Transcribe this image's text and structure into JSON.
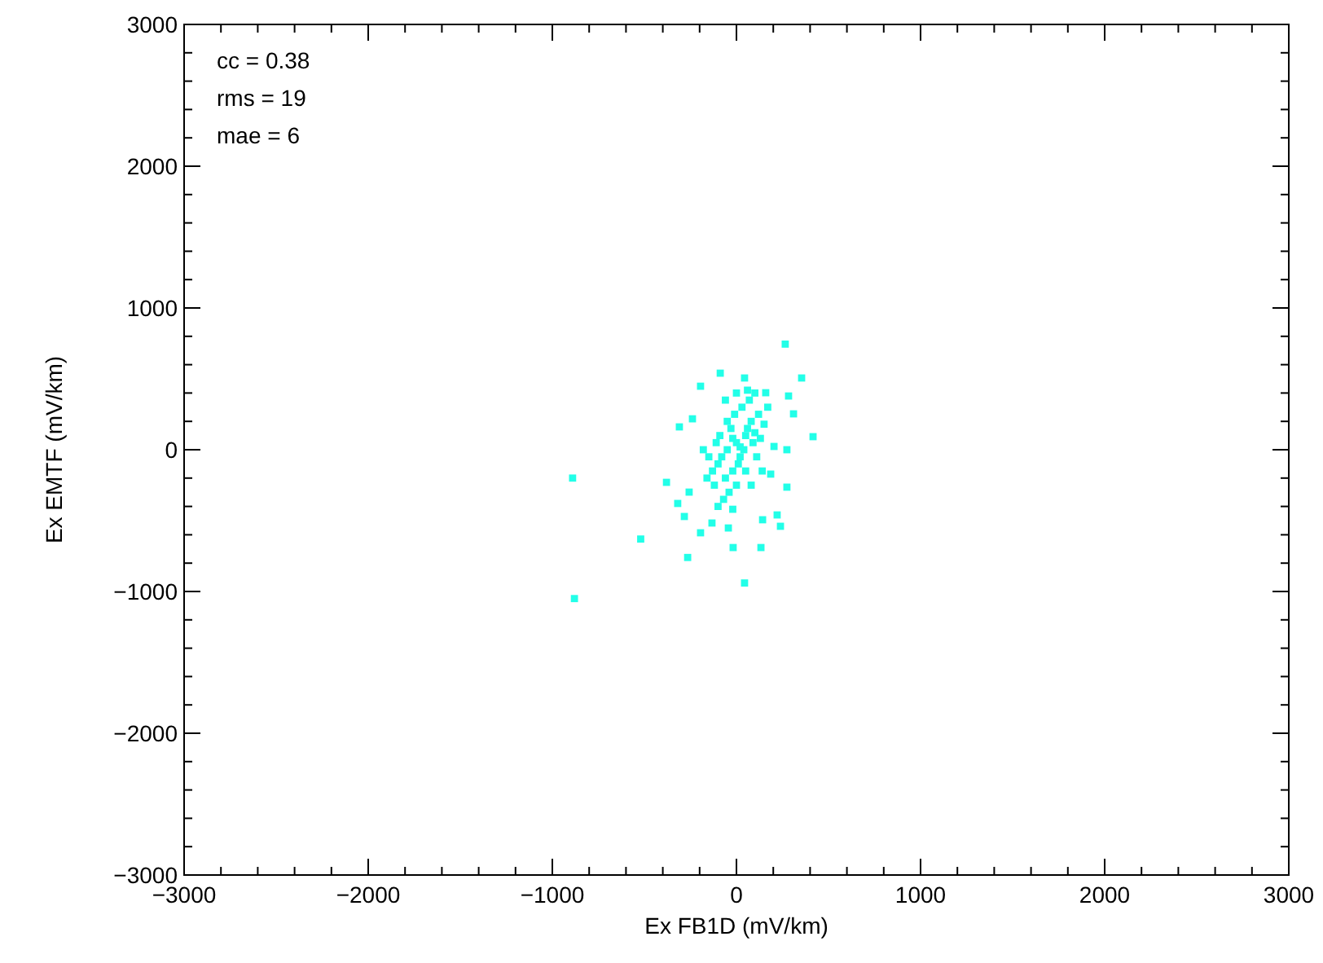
{
  "chart_data": {
    "type": "scatter",
    "xlabel": "Ex FB1D (mV/km)",
    "ylabel": "Ex EMTF (mV/km)",
    "xlim": [
      -3000,
      3000
    ],
    "ylim": [
      -3000,
      3000
    ],
    "xticks": [
      -3000,
      {
        "value": -2800,
        "label": null
      },
      {
        "value": -2600,
        "label": null
      },
      {
        "value": -2400,
        "label": null
      },
      {
        "value": -2200,
        "label": null
      },
      -2000,
      {
        "value": -1800,
        "label": null
      },
      {
        "value": -1600,
        "label": null
      },
      {
        "value": -1400,
        "label": null
      },
      {
        "value": -1200,
        "label": null
      },
      -1000,
      {
        "value": -800,
        "label": null
      },
      {
        "value": -600,
        "label": null
      },
      {
        "value": -400,
        "label": null
      },
      {
        "value": -200,
        "label": null
      },
      0,
      {
        "value": 200,
        "label": null
      },
      {
        "value": 400,
        "label": null
      },
      {
        "value": 600,
        "label": null
      },
      {
        "value": 800,
        "label": null
      },
      1000,
      {
        "value": 1200,
        "label": null
      },
      {
        "value": 1400,
        "label": null
      },
      {
        "value": 1600,
        "label": null
      },
      {
        "value": 1800,
        "label": null
      },
      2000,
      {
        "value": 2200,
        "label": null
      },
      {
        "value": 2400,
        "label": null
      },
      {
        "value": 2600,
        "label": null
      },
      {
        "value": 2800,
        "label": null
      },
      3000
    ],
    "yticks": [
      -3000,
      {
        "value": -2800,
        "label": null
      },
      {
        "value": -2600,
        "label": null
      },
      {
        "value": -2400,
        "label": null
      },
      {
        "value": -2200,
        "label": null
      },
      -2000,
      {
        "value": -1800,
        "label": null
      },
      {
        "value": -1600,
        "label": null
      },
      {
        "value": -1400,
        "label": null
      },
      {
        "value": -1200,
        "label": null
      },
      -1000,
      {
        "value": -800,
        "label": null
      },
      {
        "value": -600,
        "label": null
      },
      {
        "value": -400,
        "label": null
      },
      {
        "value": -200,
        "label": null
      },
      0,
      {
        "value": 200,
        "label": null
      },
      {
        "value": 400,
        "label": null
      },
      {
        "value": 600,
        "label": null
      },
      {
        "value": 800,
        "label": null
      },
      1000,
      {
        "value": 1200,
        "label": null
      },
      {
        "value": 1400,
        "label": null
      },
      {
        "value": 1600,
        "label": null
      },
      {
        "value": 1800,
        "label": null
      },
      2000,
      {
        "value": 2200,
        "label": null
      },
      {
        "value": 2400,
        "label": null
      },
      {
        "value": 2600,
        "label": null
      },
      {
        "value": 2800,
        "label": null
      },
      3000
    ],
    "grid": false,
    "marker": "square",
    "annotations": [
      "cc = 0.38",
      "rms = 19",
      "mae = 6"
    ],
    "series": [
      {
        "color": "#22ffe8",
        "x": [
          -890,
          -880,
          265,
          354,
          416,
          44,
          -520,
          -265,
          -310,
          -380,
          -88,
          -18,
          133,
          239,
          274,
          274,
          310,
          283,
          -195,
          -239,
          -283,
          -133,
          142,
          221,
          -257,
          -319,
          -195,
          -44,
          186,
          204,
          159,
          44,
          -50,
          0,
          50,
          -100,
          -80,
          20,
          60,
          80,
          -20,
          -60,
          -120,
          -40,
          10,
          40,
          100,
          120,
          30,
          -10,
          70,
          -30,
          -90,
          -150,
          -130,
          -70,
          0,
          90,
          130,
          150,
          -110,
          -160,
          20,
          -20,
          50,
          110,
          -50,
          0,
          60,
          -100,
          -20,
          80,
          -180,
          170,
          140,
          -60,
          100
        ],
        "values": [
          -200,
          -1050,
          745,
          506,
          92,
          -940,
          -630,
          -760,
          161,
          -230,
          540,
          -690,
          -690,
          -540,
          -264,
          0,
          253,
          379,
          448,
          218,
          -471,
          -517,
          -494,
          -460,
          -299,
          -379,
          -586,
          -552,
          -172,
          23,
          402,
          506,
          0,
          50,
          100,
          -100,
          -50,
          20,
          150,
          200,
          -150,
          -200,
          -250,
          -300,
          -100,
          0,
          120,
          250,
          300,
          250,
          350,
          150,
          100,
          -50,
          -150,
          -350,
          -250,
          50,
          80,
          180,
          50,
          -200,
          -50,
          80,
          -150,
          -50,
          200,
          400,
          420,
          -400,
          -420,
          -250,
          0,
          300,
          -150,
          350,
          400
        ]
      }
    ]
  }
}
